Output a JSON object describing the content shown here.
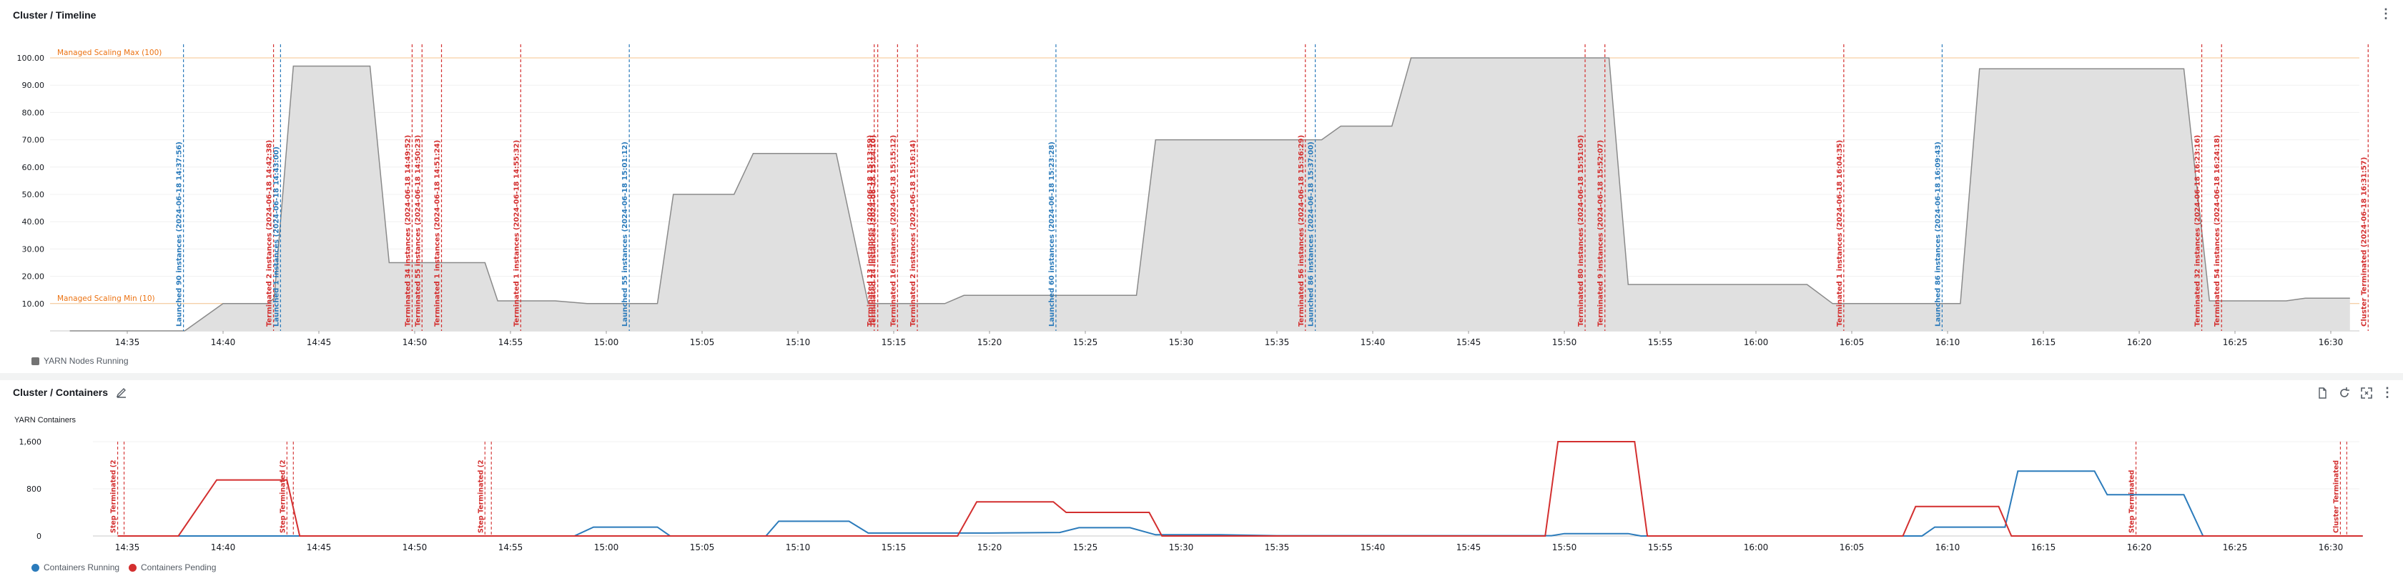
{
  "panel1": {
    "title": "Cluster / Timeline",
    "legend": "YARN Nodes Running",
    "color_fill": "#e0e0e0",
    "color_line": "#8a8a8a"
  },
  "panel2": {
    "title": "Cluster / Containers",
    "sublabel": "YARN Containers",
    "legend": [
      "Containers Running",
      "Containers Pending"
    ],
    "color_running": "#2b7bbb",
    "color_pending": "#d32f2f"
  },
  "chart_data": [
    {
      "type": "area",
      "y_ticks": [
        "10.00",
        "20.00",
        "30.00",
        "40.00",
        "50.00",
        "60.00",
        "70.00",
        "80.00",
        "90.00",
        "100.00"
      ],
      "ylim": [
        0,
        100
      ],
      "x_ticks": [
        "14:35",
        "14:40",
        "14:45",
        "14:50",
        "14:55",
        "15:00",
        "15:05",
        "15:10",
        "15:15",
        "15:20",
        "15:25",
        "15:30",
        "15:35",
        "15:40",
        "15:45",
        "15:50",
        "15:55",
        "16:00",
        "16:05",
        "16:10",
        "16:15",
        "16:20",
        "16:25",
        "16:30"
      ],
      "thresholds": [
        {
          "label": "Managed Scaling Max (100)",
          "value": 100
        },
        {
          "label": "Managed Scaling Min (10)",
          "value": 10
        }
      ],
      "series": [
        {
          "name": "YARN Nodes Running",
          "points": [
            [
              "14:32:00",
              0
            ],
            [
              "14:38:00",
              0
            ],
            [
              "14:39:00",
              5
            ],
            [
              "14:40:00",
              10
            ],
            [
              "14:42:20",
              10
            ],
            [
              "14:42:40",
              12
            ],
            [
              "14:43:40",
              97
            ],
            [
              "14:47:40",
              97
            ],
            [
              "14:48:40",
              25
            ],
            [
              "14:51:00",
              25
            ],
            [
              "14:52:00",
              25
            ],
            [
              "14:53:40",
              25
            ],
            [
              "14:54:20",
              11
            ],
            [
              "14:57:20",
              11
            ],
            [
              "14:59:00",
              10
            ],
            [
              "15:02:40",
              10
            ],
            [
              "15:03:30",
              50
            ],
            [
              "15:06:40",
              50
            ],
            [
              "15:07:40",
              65
            ],
            [
              "15:12:00",
              65
            ],
            [
              "15:13:40",
              10
            ],
            [
              "15:16:00",
              10
            ],
            [
              "15:17:40",
              10
            ],
            [
              "15:18:40",
              13
            ],
            [
              "15:27:40",
              13
            ],
            [
              "15:28:40",
              70
            ],
            [
              "15:37:20",
              70
            ],
            [
              "15:38:20",
              75
            ],
            [
              "15:41:00",
              75
            ],
            [
              "15:42:00",
              100
            ],
            [
              "15:51:20",
              100
            ],
            [
              "15:52:20",
              100
            ],
            [
              "15:53:20",
              17
            ],
            [
              "16:02:40",
              17
            ],
            [
              "16:04:00",
              10
            ],
            [
              "16:10:40",
              10
            ],
            [
              "16:11:40",
              96
            ],
            [
              "16:22:20",
              96
            ],
            [
              "16:23:40",
              11
            ],
            [
              "16:27:40",
              11
            ],
            [
              "16:28:40",
              12
            ],
            [
              "16:31:00",
              12
            ]
          ]
        }
      ],
      "annotations": [
        {
          "time": "14:37:56",
          "label": "Launched 90 instances (2024-06-18 14:37:56)",
          "kind": "launch"
        },
        {
          "time": "14:42:38",
          "label": "Terminated 2 instances (2024-06-18 14:42:38)",
          "kind": "terminate"
        },
        {
          "time": "14:43:00",
          "label": "Launched 1 instances (2024-06-18 14:43:00)",
          "kind": "launch"
        },
        {
          "time": "14:49:52",
          "label": "Terminated 34 instances (2024-06-18 14:49:52)",
          "kind": "terminate"
        },
        {
          "time": "14:50:23",
          "label": "Terminated 55 instances (2024-06-18 14:50:23)",
          "kind": "terminate"
        },
        {
          "time": "14:51:24",
          "label": "Terminated 1 instances (2024-06-18 14:51:24)",
          "kind": "terminate"
        },
        {
          "time": "14:55:32",
          "label": "Terminated 1 instances (2024-06-18 14:55:32)",
          "kind": "terminate"
        },
        {
          "time": "15:01:12",
          "label": "Launched 55 instances (2024-06-18 15:01:12)",
          "kind": "launch"
        },
        {
          "time": "15:13:59",
          "label": "Terminated 13 instances (2024-06-18 15:13:59)",
          "kind": "terminate"
        },
        {
          "time": "15:14:10",
          "label": "Terminated 24 instances (2024-06-18 15:14:10)",
          "kind": "terminate"
        },
        {
          "time": "15:15:12",
          "label": "Terminated 16 instances (2024-06-18 15:15:12)",
          "kind": "terminate"
        },
        {
          "time": "15:16:14",
          "label": "Terminated 2 instances (2024-06-18 15:16:14)",
          "kind": "terminate"
        },
        {
          "time": "15:23:28",
          "label": "Launched 60 instances (2024-06-18 15:23:28)",
          "kind": "launch"
        },
        {
          "time": "15:36:29",
          "label": "Terminated 56 instances (2024-06-18 15:36:29)",
          "kind": "terminate"
        },
        {
          "time": "15:37:00",
          "label": "Launched 86 instances (2024-06-18 15:37:00)",
          "kind": "launch"
        },
        {
          "time": "15:51:05",
          "label": "Terminated 80 instances (2024-06-18 15:51:05)",
          "kind": "terminate"
        },
        {
          "time": "15:52:07",
          "label": "Terminated 9 instances (2024-06-18 15:52:07)",
          "kind": "terminate"
        },
        {
          "time": "16:04:35",
          "label": "Terminated 1 instances (2024-06-18 16:04:35)",
          "kind": "terminate"
        },
        {
          "time": "16:09:43",
          "label": "Launched 86 instances (2024-06-18 16:09:43)",
          "kind": "launch"
        },
        {
          "time": "16:23:16",
          "label": "Terminated 32 instances (2024-06-18 16:23:16)",
          "kind": "terminate"
        },
        {
          "time": "16:24:18",
          "label": "Terminated 54 instances (2024-06-18 16:24:18)",
          "kind": "terminate"
        },
        {
          "time": "16:31:57",
          "label": "Cluster Terminated (2024-06-18 16:31:57)",
          "kind": "terminate"
        }
      ]
    },
    {
      "type": "line",
      "title": "YARN Containers",
      "y_ticks": [
        "0",
        "800",
        "1,600"
      ],
      "ylim": [
        0,
        1600
      ],
      "x_ticks": [
        "14:35",
        "14:40",
        "14:45",
        "14:50",
        "14:55",
        "15:00",
        "15:05",
        "15:10",
        "15:15",
        "15:20",
        "15:25",
        "15:30",
        "15:35",
        "15:40",
        "15:45",
        "15:50",
        "15:55",
        "16:00",
        "16:05",
        "16:10",
        "16:15",
        "16:20",
        "16:25",
        "16:30"
      ],
      "series": [
        {
          "name": "Containers Running",
          "points": [
            [
              "14:34:30",
              0
            ],
            [
              "14:58:20",
              0
            ],
            [
              "14:59:20",
              150
            ],
            [
              "15:02:40",
              150
            ],
            [
              "15:03:20",
              0
            ],
            [
              "15:08:20",
              0
            ],
            [
              "15:09:00",
              250
            ],
            [
              "15:12:40",
              250
            ],
            [
              "15:13:40",
              50
            ],
            [
              "15:20:00",
              50
            ],
            [
              "15:23:40",
              60
            ],
            [
              "15:24:40",
              140
            ],
            [
              "15:27:20",
              140
            ],
            [
              "15:28:40",
              20
            ],
            [
              "15:32:00",
              20
            ],
            [
              "15:35:00",
              5
            ],
            [
              "15:49:20",
              5
            ],
            [
              "15:50:00",
              40
            ],
            [
              "15:53:20",
              40
            ],
            [
              "15:54:00",
              0
            ],
            [
              "16:08:40",
              0
            ],
            [
              "16:09:20",
              150
            ],
            [
              "16:13:00",
              150
            ],
            [
              "16:13:40",
              1100
            ],
            [
              "16:17:40",
              1100
            ],
            [
              "16:18:20",
              700
            ],
            [
              "16:22:20",
              700
            ],
            [
              "16:23:20",
              0
            ],
            [
              "16:31:40",
              0
            ]
          ]
        },
        {
          "name": "Containers Pending",
          "points": [
            [
              "14:34:30",
              0
            ],
            [
              "14:37:40",
              0
            ],
            [
              "14:39:40",
              950
            ],
            [
              "14:43:20",
              950
            ],
            [
              "14:44:00",
              0
            ],
            [
              "15:18:20",
              0
            ],
            [
              "15:19:20",
              580
            ],
            [
              "15:23:20",
              580
            ],
            [
              "15:24:00",
              400
            ],
            [
              "15:28:20",
              400
            ],
            [
              "15:29:00",
              0
            ],
            [
              "15:49:00",
              0
            ],
            [
              "15:49:40",
              1600
            ],
            [
              "15:53:40",
              1600
            ],
            [
              "15:54:20",
              0
            ],
            [
              "16:07:40",
              0
            ],
            [
              "16:08:20",
              500
            ],
            [
              "16:12:40",
              500
            ],
            [
              "16:13:20",
              0
            ],
            [
              "16:31:40",
              0
            ]
          ]
        }
      ],
      "annotations": [
        {
          "time": "14:34:30",
          "label": "Step Terminated (2",
          "kind": "terminate"
        },
        {
          "time": "14:34:50",
          "label": "",
          "kind": "terminate"
        },
        {
          "time": "14:43:20",
          "label": "Step Terminated (2",
          "kind": "terminate"
        },
        {
          "time": "14:43:40",
          "label": "",
          "kind": "terminate"
        },
        {
          "time": "14:53:40",
          "label": "Step Terminated (2",
          "kind": "terminate"
        },
        {
          "time": "14:54:00",
          "label": "",
          "kind": "terminate"
        },
        {
          "time": "16:19:50",
          "label": "Step Terminated",
          "kind": "terminate"
        },
        {
          "time": "16:30:30",
          "label": "Cluster Terminated",
          "kind": "terminate"
        },
        {
          "time": "16:30:50",
          "label": "",
          "kind": "terminate"
        }
      ]
    }
  ]
}
